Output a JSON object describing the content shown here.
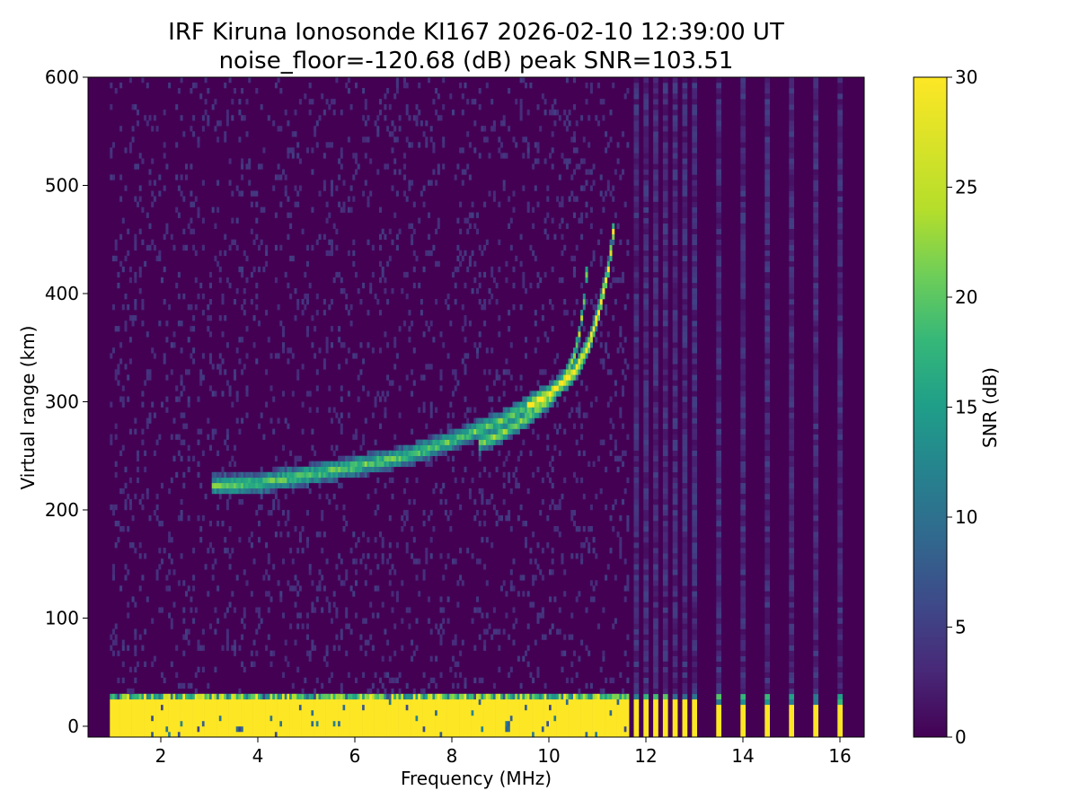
{
  "chart_data": {
    "type": "heatmap",
    "title_line1": "IRF Kiruna Ionosonde KI167 2026-02-10 12:39:00  UT",
    "title_line2": "noise_floor=-120.68 (dB) peak SNR=103.51",
    "xlabel": "Frequency (MHz)",
    "ylabel": "Virtual range (km)",
    "colorbar_label": "SNR (dB)",
    "xlim": [
      0.5,
      16.5
    ],
    "ylim": [
      -10,
      600
    ],
    "clim": [
      0,
      30
    ],
    "x_ticks": [
      2,
      4,
      6,
      8,
      10,
      12,
      14,
      16
    ],
    "y_ticks": [
      0,
      100,
      200,
      300,
      400,
      500,
      600
    ],
    "colorbar_ticks": [
      0,
      5,
      10,
      15,
      20,
      25,
      30
    ],
    "colormap": "viridis",
    "data_start_freq_mhz": 0.95,
    "continuous_sweep_end_mhz": 11.65,
    "sparse_channel_freqs_mhz": [
      11.8,
      12.0,
      12.2,
      12.4,
      12.6,
      12.8,
      13.0,
      13.5,
      14.0,
      14.5,
      15.0,
      15.5,
      16.0
    ],
    "ground_clutter_range_km": [
      0,
      30
    ],
    "traces": [
      {
        "name_hint": "F-layer O-mode",
        "points": [
          [
            3.0,
            220
          ],
          [
            4.0,
            222
          ],
          [
            5.0,
            230
          ],
          [
            6.0,
            238
          ],
          [
            7.0,
            247
          ],
          [
            8.0,
            262
          ],
          [
            9.0,
            280
          ],
          [
            10.0,
            305
          ],
          [
            10.5,
            325
          ],
          [
            10.8,
            350
          ],
          [
            11.0,
            380
          ],
          [
            11.2,
            420
          ],
          [
            11.35,
            470
          ]
        ]
      },
      {
        "name_hint": "F-layer X-mode",
        "points": [
          [
            8.5,
            258
          ],
          [
            9.0,
            268
          ],
          [
            9.5,
            282
          ],
          [
            10.0,
            300
          ],
          [
            10.3,
            320
          ],
          [
            10.5,
            340
          ],
          [
            10.6,
            360
          ],
          [
            10.7,
            390
          ],
          [
            10.8,
            440
          ]
        ]
      }
    ]
  }
}
